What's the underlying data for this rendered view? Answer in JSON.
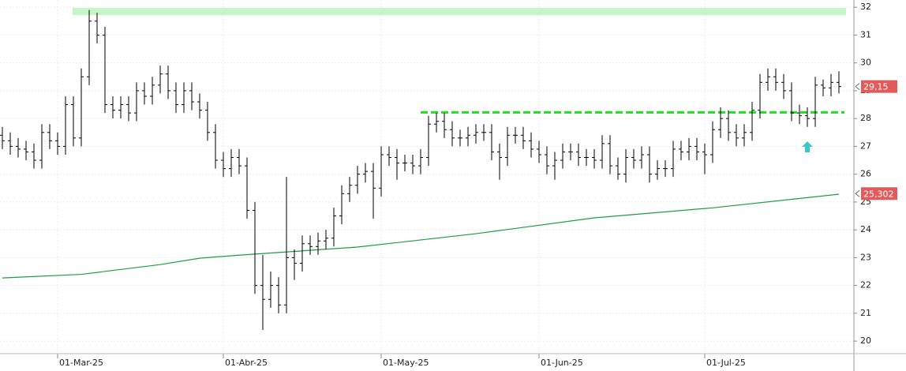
{
  "chart_data": {
    "type": "ohlc",
    "xlim": [
      -0.3,
      107.9
    ],
    "ylim": [
      19.55,
      32.26
    ],
    "yticks": [
      20,
      21,
      22,
      23,
      24,
      25,
      26,
      27,
      28,
      29,
      30,
      31,
      32
    ],
    "xticks": [
      {
        "value": 7,
        "label": "01-Mar-25"
      },
      {
        "value": 28,
        "label": "01-Abr-25"
      },
      {
        "value": 48,
        "label": "01-May-25"
      },
      {
        "value": 68,
        "label": "01-Jun-25"
      },
      {
        "value": 89,
        "label": "01-Jul-25"
      }
    ],
    "grid": true,
    "color": "#000000",
    "open": [
      27.4,
      27.2,
      27,
      26.9,
      26.8,
      26.5,
      27.5,
      27.2,
      27,
      28.5,
      27.3,
      29.5,
      31.5,
      31,
      28.5,
      28.3,
      28.5,
      28.2,
      29,
      28.8,
      29.2,
      29.6,
      29,
      28.5,
      29,
      28.6,
      28.3,
      27.5,
      26.5,
      26.2,
      26.6,
      26.3,
      24.7,
      22,
      21.5,
      22,
      21.3,
      23,
      22.8,
      23.5,
      23.4,
      23.6,
      23.7,
      24.5,
      25.3,
      25.6,
      26,
      26.1,
      25.5,
      26.7,
      26.6,
      26.4,
      26.4,
      26.3,
      26.6,
      27.8,
      27.9,
      27.6,
      27.3,
      27.3,
      27.4,
      27.5,
      27.5,
      26.8,
      26.6,
      27.4,
      27.4,
      27.2,
      26.9,
      26.7,
      26.3,
      26.5,
      26.8,
      26.8,
      26.6,
      26.6,
      26.5,
      27.1,
      26.3,
      26,
      26.6,
      26.5,
      26.7,
      26,
      26.2,
      26.2,
      26.9,
      26.8,
      27,
      26.8,
      26.7,
      27.6,
      28,
      27.5,
      27.3,
      27.5,
      28.3,
      29.3,
      29.5,
      29.3,
      29,
      28.2,
      28.1,
      28,
      29.2,
      29.1,
      29.3
    ],
    "high": [
      27.7,
      27.5,
      27.3,
      27.2,
      27.1,
      27.8,
      27.8,
      27.5,
      28.8,
      28.8,
      29.8,
      31.9,
      31.8,
      31.3,
      28.8,
      28.8,
      28.8,
      29.3,
      29.3,
      29.5,
      29.9,
      29.9,
      29.3,
      29.3,
      29.3,
      28.9,
      28.6,
      27.8,
      26.8,
      26.9,
      26.9,
      26.6,
      25,
      23.1,
      22.5,
      22.3,
      25.9,
      23.3,
      23.8,
      23.8,
      23.9,
      24,
      24.8,
      25.6,
      25.9,
      26.3,
      26.4,
      26.4,
      27,
      27,
      26.9,
      26.7,
      26.7,
      26.9,
      28.1,
      28.2,
      28.2,
      27.9,
      27.6,
      27.7,
      27.8,
      27.8,
      27.8,
      27.1,
      27.7,
      27.7,
      27.7,
      27.5,
      27.2,
      27,
      26.8,
      27.1,
      27.1,
      27.1,
      26.9,
      26.9,
      27.4,
      27.4,
      26.6,
      26.9,
      26.9,
      27,
      27,
      26.5,
      26.5,
      27.2,
      27.2,
      27.3,
      27.3,
      27.1,
      27.9,
      28.4,
      28.3,
      27.8,
      27.8,
      28.6,
      29.6,
      29.8,
      29.8,
      29.6,
      29.3,
      28.5,
      28.4,
      29.5,
      29.4,
      29.6,
      29.7
    ],
    "low": [
      26.9,
      26.7,
      26.6,
      26.5,
      26.2,
      26.2,
      26.9,
      26.7,
      26.7,
      27,
      27,
      29.2,
      30.7,
      28.2,
      28,
      28,
      27.9,
      27.9,
      28.5,
      28.5,
      28.9,
      28.7,
      28.2,
      28.2,
      28.3,
      28,
      27.2,
      26.2,
      25.9,
      25.9,
      26,
      24.4,
      21.7,
      20.4,
      21.2,
      21,
      21,
      22.2,
      22.5,
      23.1,
      23.1,
      23.3,
      23.4,
      24.2,
      25,
      25.3,
      25.7,
      24.4,
      25.2,
      26.3,
      25.8,
      26.1,
      26,
      26,
      26.3,
      27.5,
      27.3,
      27,
      27,
      27,
      27.1,
      27.2,
      26.5,
      25.8,
      26.3,
      27.1,
      26.9,
      26.6,
      26.4,
      26,
      25.8,
      26.2,
      26.5,
      26.3,
      26.3,
      26.2,
      26.2,
      26,
      25.8,
      25.7,
      26.2,
      26.2,
      25.7,
      25.8,
      25.9,
      25.9,
      26.5,
      26.5,
      26.5,
      26,
      26.4,
      27.3,
      27.2,
      27,
      27,
      27.2,
      28,
      29,
      29,
      28.7,
      27.9,
      27.8,
      27.7,
      27.7,
      28.8,
      28.8,
      28.9
    ],
    "close": [
      27.2,
      27,
      26.9,
      26.8,
      26.5,
      27.5,
      27.2,
      27,
      28.5,
      27.3,
      29.5,
      31.5,
      31,
      28.5,
      28.3,
      28.5,
      28.2,
      29,
      28.8,
      29.2,
      29.6,
      29,
      28.5,
      29,
      28.6,
      28.3,
      27.5,
      26.5,
      26.2,
      26.6,
      26.3,
      24.7,
      22,
      21.5,
      22,
      21.3,
      23,
      22.8,
      23.5,
      23.4,
      23.6,
      23.7,
      24.5,
      25.3,
      25.6,
      26,
      26.1,
      25.5,
      26.7,
      26.6,
      26.4,
      26.4,
      26.3,
      26.6,
      27.8,
      27.9,
      27.6,
      27.3,
      27.3,
      27.4,
      27.5,
      27.5,
      26.8,
      26.6,
      27.4,
      27.4,
      27.2,
      26.9,
      26.7,
      26.3,
      26.5,
      26.8,
      26.8,
      26.6,
      26.6,
      26.5,
      27.1,
      26.3,
      26,
      26.6,
      26.5,
      26.7,
      26,
      26.2,
      26.2,
      26.9,
      26.8,
      27,
      26.8,
      26.7,
      27.6,
      28,
      27.5,
      27.3,
      27.5,
      28.3,
      29.3,
      29.5,
      29.3,
      29,
      28.2,
      28.1,
      28,
      29.2,
      29.1,
      29.3,
      29.15
    ],
    "moving_average": {
      "color": "#1e9e3e",
      "x": [
        0,
        10,
        20,
        25,
        30,
        45,
        60,
        75,
        90,
        106
      ],
      "values": [
        22.27,
        22.4,
        22.75,
        22.98,
        23.09,
        23.38,
        23.86,
        24.43,
        24.79,
        25.28
      ]
    },
    "hlines": [
      {
        "value": 31.85,
        "color": "#c6f5c6",
        "style": "band",
        "start": 8.9,
        "end": 106.9
      },
      {
        "value": 28.22,
        "color": "#22dd22",
        "style": "dashed",
        "start": 53,
        "end": 106.7
      }
    ],
    "price_labels": [
      {
        "value": 29.15,
        "label": "29,15",
        "color": "#e25a5a"
      },
      {
        "value": 25.302,
        "label": "25,302",
        "color": "#e25a5a"
      }
    ]
  }
}
